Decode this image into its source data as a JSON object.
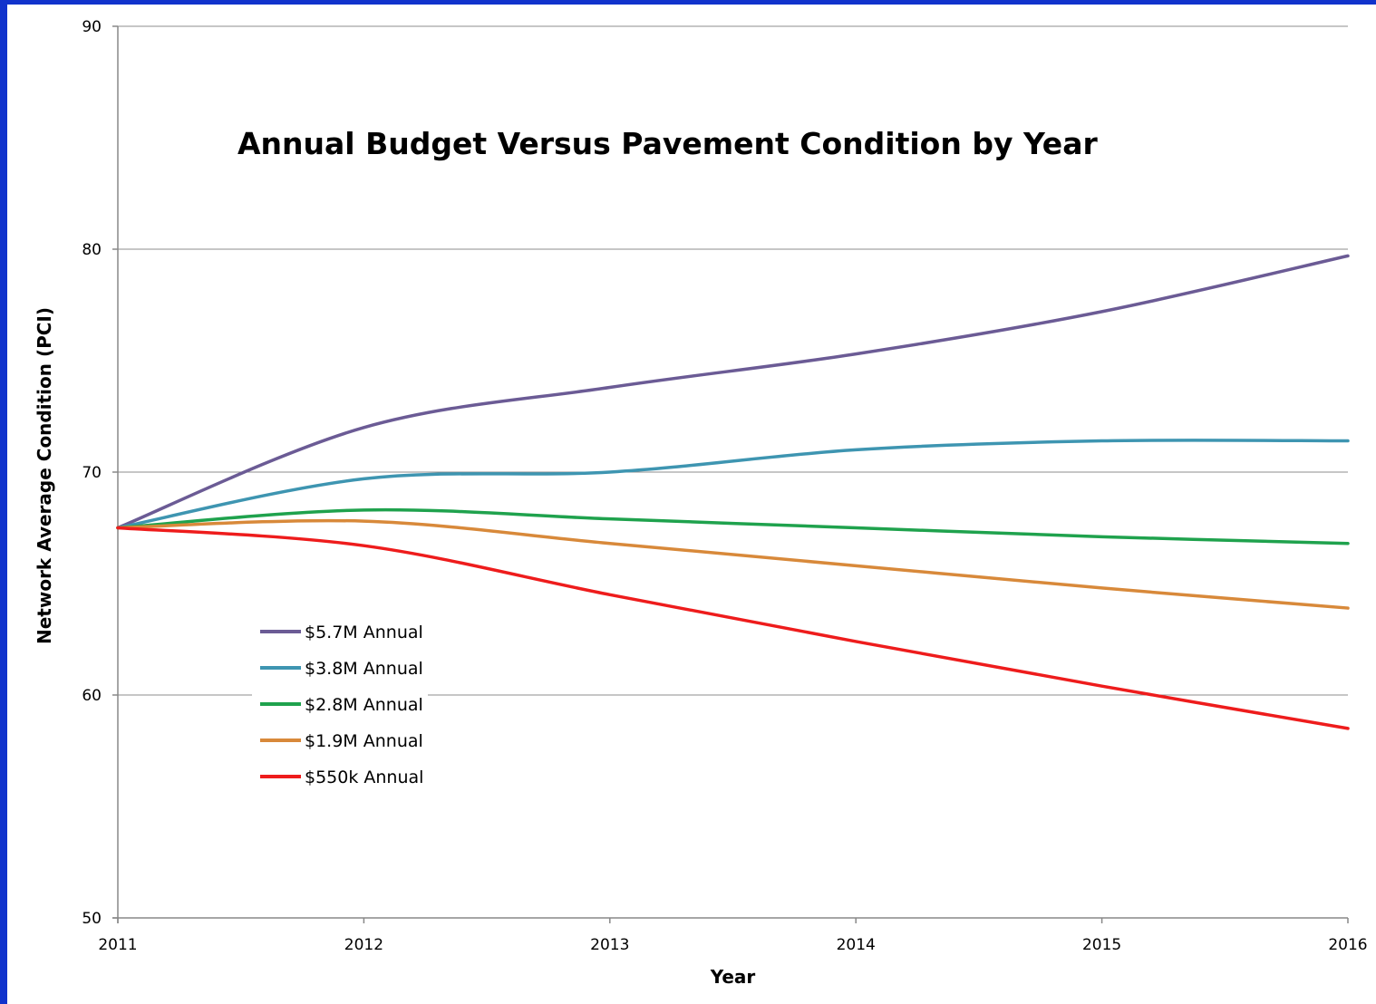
{
  "chart_data": {
    "type": "line",
    "title": "Annual Budget Versus Pavement Condition by Year",
    "xlabel": "Year",
    "ylabel": "Network Average Condition (PCI)",
    "x": [
      2011,
      2012,
      2013,
      2014,
      2015,
      2016
    ],
    "xlim": [
      2011,
      2016
    ],
    "ylim": [
      50,
      90
    ],
    "yticks": [
      50,
      60,
      70,
      80,
      90
    ],
    "grid": "horizontal",
    "legend_position": "left",
    "series": [
      {
        "name": "$5.7M Annual",
        "color": "#6b5b95",
        "values": [
          67.5,
          72.0,
          73.8,
          75.3,
          77.2,
          79.7
        ]
      },
      {
        "name": "$3.8M Annual",
        "color": "#3e95b1",
        "values": [
          67.5,
          69.7,
          70.0,
          71.0,
          71.4,
          71.4
        ]
      },
      {
        "name": "$2.8M Annual",
        "color": "#1fa24d",
        "values": [
          67.5,
          68.3,
          67.9,
          67.5,
          67.1,
          66.8
        ]
      },
      {
        "name": "$1.9M Annual",
        "color": "#d8893a",
        "values": [
          67.5,
          67.8,
          66.8,
          65.8,
          64.8,
          63.9
        ]
      },
      {
        "name": "$550k Annual",
        "color": "#ee1c1c",
        "values": [
          67.5,
          66.7,
          64.5,
          62.4,
          60.4,
          58.5
        ]
      }
    ]
  }
}
